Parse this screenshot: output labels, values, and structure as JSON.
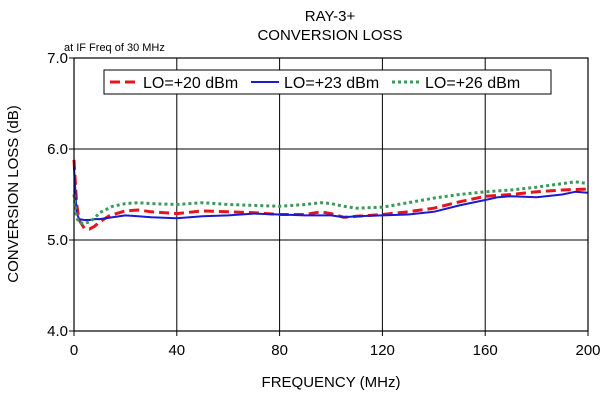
{
  "chart_data": {
    "type": "line",
    "title": "RAY-3+",
    "subtitle": "CONVERSION LOSS",
    "annotation": "at IF Freq of 30 MHz",
    "xlabel": "FREQUENCY (MHz)",
    "ylabel": "CONVERSION LOSS (dB)",
    "xlim": [
      0,
      200
    ],
    "ylim": [
      4.0,
      7.0
    ],
    "x_ticks": [
      "0",
      "40",
      "80",
      "120",
      "160",
      "200"
    ],
    "y_ticks": [
      "4.0",
      "5.0",
      "6.0",
      "7.0"
    ],
    "grid": true,
    "legend_position": "top",
    "series": [
      {
        "name": "LO=+20 dBm",
        "color": "#e8141b",
        "dash": "dashed",
        "x": [
          0,
          1,
          2,
          4,
          6,
          8,
          10,
          14,
          20,
          25,
          30,
          40,
          50,
          60,
          70,
          80,
          90,
          96,
          100,
          105,
          110,
          120,
          130,
          140,
          150,
          160,
          170,
          180,
          190,
          200
        ],
        "y": [
          5.88,
          5.4,
          5.22,
          5.13,
          5.12,
          5.15,
          5.2,
          5.27,
          5.32,
          5.33,
          5.31,
          5.29,
          5.32,
          5.31,
          5.3,
          5.28,
          5.28,
          5.31,
          5.29,
          5.25,
          5.26,
          5.28,
          5.31,
          5.35,
          5.42,
          5.48,
          5.5,
          5.53,
          5.55,
          5.56
        ]
      },
      {
        "name": "LO=+23 dBm",
        "color": "#1a1ad0",
        "dash": "solid",
        "x": [
          0,
          1,
          2,
          4,
          6,
          8,
          10,
          15,
          20,
          25,
          30,
          40,
          50,
          60,
          70,
          80,
          90,
          100,
          105,
          110,
          120,
          130,
          140,
          150,
          160,
          165,
          170,
          180,
          190,
          195,
          200
        ],
        "y": [
          5.8,
          5.3,
          5.23,
          5.22,
          5.22,
          5.23,
          5.23,
          5.25,
          5.27,
          5.26,
          5.25,
          5.24,
          5.26,
          5.27,
          5.29,
          5.28,
          5.27,
          5.27,
          5.25,
          5.26,
          5.27,
          5.28,
          5.31,
          5.38,
          5.44,
          5.47,
          5.48,
          5.47,
          5.5,
          5.53,
          5.52
        ]
      },
      {
        "name": "LO=+26 dBm",
        "color": "#3a9a5a",
        "dash": "dotted",
        "x": [
          0,
          1,
          2,
          4,
          6,
          8,
          10,
          15,
          20,
          25,
          30,
          40,
          50,
          60,
          70,
          80,
          90,
          96,
          100,
          105,
          110,
          120,
          130,
          140,
          150,
          160,
          170,
          180,
          190,
          195,
          200
        ],
        "y": [
          5.5,
          5.25,
          5.19,
          5.18,
          5.2,
          5.24,
          5.3,
          5.37,
          5.4,
          5.41,
          5.4,
          5.39,
          5.41,
          5.39,
          5.38,
          5.37,
          5.39,
          5.41,
          5.4,
          5.37,
          5.35,
          5.36,
          5.41,
          5.46,
          5.5,
          5.53,
          5.55,
          5.58,
          5.62,
          5.64,
          5.62
        ]
      }
    ]
  }
}
